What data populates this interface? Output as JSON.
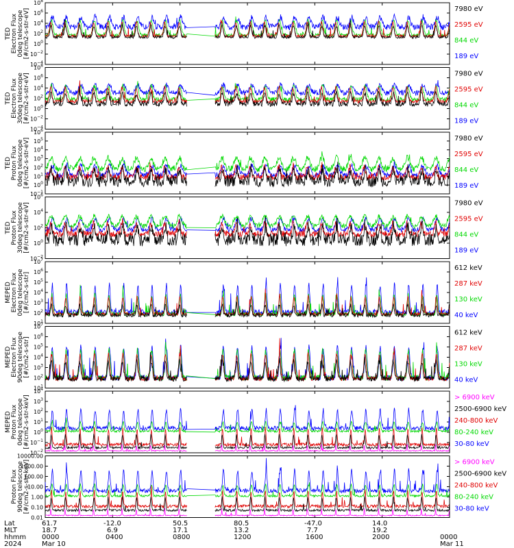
{
  "colors": {
    "blue": "#0000ff",
    "green": "#00d800",
    "red": "#e00000",
    "black": "#000000",
    "magenta": "#ff00ff"
  },
  "panels": [
    {
      "ylabel": [
        "TED",
        "Electron Flux",
        "0deg telescope",
        "[#/cm2-s-str-eV]"
      ],
      "scale": "log",
      "ylim": [
        -4,
        8
      ],
      "ytick_exps": [
        8,
        6,
        4,
        2,
        0,
        -2,
        -4
      ],
      "tick_style": "pow",
      "legend": [
        {
          "label": "7980 eV",
          "color": "black"
        },
        {
          "label": "2595 eV",
          "color": "red"
        },
        {
          "label": "844 eV",
          "color": "green"
        },
        {
          "label": "189 eV",
          "color": "blue"
        }
      ]
    },
    {
      "ylabel": [
        "TED",
        "Electron Flux",
        "30deg telescope",
        "[#/cm2-s-str-eV]"
      ],
      "scale": "log",
      "ylim": [
        -4,
        8
      ],
      "ytick_exps": [
        8,
        6,
        4,
        2,
        0,
        -2,
        -4
      ],
      "tick_style": "pow",
      "legend": [
        {
          "label": "7980 eV",
          "color": "black"
        },
        {
          "label": "2595 eV",
          "color": "red"
        },
        {
          "label": "844 eV",
          "color": "green"
        },
        {
          "label": "189 eV",
          "color": "blue"
        }
      ]
    },
    {
      "ylabel": [
        "TED",
        "Proton Flux",
        "0deg telescope",
        "[#/cm2-s-str-eV]"
      ],
      "scale": "log",
      "ylim": [
        -1,
        6
      ],
      "ytick_exps": [
        6,
        5,
        4,
        3,
        2,
        1,
        0,
        -1
      ],
      "tick_style": "pow",
      "legend": [
        {
          "label": "7980 eV",
          "color": "black"
        },
        {
          "label": "2595 eV",
          "color": "red"
        },
        {
          "label": "844 eV",
          "color": "green"
        },
        {
          "label": "189 eV",
          "color": "blue"
        }
      ]
    },
    {
      "ylabel": [
        "TED",
        "Proton Flux",
        "30deg telescope",
        "[#/cm2-s-str-eV]"
      ],
      "scale": "log",
      "ylim": [
        -2,
        6
      ],
      "ytick_exps": [
        6,
        4,
        2,
        0,
        -2
      ],
      "tick_style": "pow",
      "legend": [
        {
          "label": "7980 eV",
          "color": "black"
        },
        {
          "label": "2595 eV",
          "color": "red"
        },
        {
          "label": "844 eV",
          "color": "green"
        },
        {
          "label": "189 eV",
          "color": "blue"
        }
      ]
    },
    {
      "ylabel": [
        "MEPED",
        "Electron Flux",
        "0deg telescope",
        "[#/cm2-s-str]"
      ],
      "scale": "log",
      "ylim": [
        1,
        7
      ],
      "ytick_exps": [
        7,
        6,
        5,
        4,
        3,
        2,
        1
      ],
      "tick_style": "pow",
      "legend": [
        {
          "label": "612 keV",
          "color": "black"
        },
        {
          "label": "287 keV",
          "color": "red"
        },
        {
          "label": "130 keV",
          "color": "green"
        },
        {
          "label": "40 keV",
          "color": "blue"
        }
      ]
    },
    {
      "ylabel": [
        "MEPED",
        "Electron Flux",
        "90deg telescope",
        "[#/cm2-s-str]"
      ],
      "scale": "log",
      "ylim": [
        1,
        7
      ],
      "ytick_exps": [
        7,
        6,
        5,
        4,
        3,
        2,
        1
      ],
      "tick_style": "pow",
      "legend": [
        {
          "label": "612 keV",
          "color": "black"
        },
        {
          "label": "287 keV",
          "color": "red"
        },
        {
          "label": "130 keV",
          "color": "green"
        },
        {
          "label": "40 keV",
          "color": "blue"
        }
      ]
    },
    {
      "ylabel": [
        "MEPED",
        "Proton Flux",
        "0deg telescope",
        "[#/cm2-s-str-keV]"
      ],
      "scale": "log",
      "ylim": [
        -2,
        4
      ],
      "ytick_exps": [
        4,
        3,
        2,
        1,
        0,
        -1,
        -2
      ],
      "tick_style": "pow",
      "legend": [
        {
          "label": "> 6900 keV",
          "color": "magenta"
        },
        {
          "label": "2500-6900 keV",
          "color": "black"
        },
        {
          "label": "240-800 keV",
          "color": "red"
        },
        {
          "label": "80-240 keV",
          "color": "green"
        },
        {
          "label": "30-80 keV",
          "color": "blue"
        }
      ]
    },
    {
      "ylabel": [
        "",
        "Proton Flux",
        "90deg telescope",
        "[#/cm2-s-str-keV]"
      ],
      "scale": "log",
      "ylim": [
        -2,
        4
      ],
      "ytick_labels": [
        "10000.00",
        "1000.00",
        "100.00",
        "10.00",
        "1.00",
        "0.10",
        "0.01"
      ],
      "tick_style": "dec",
      "legend": [
        {
          "label": "> 6900 keV",
          "color": "magenta"
        },
        {
          "label": "2500-6900 keV",
          "color": "black"
        },
        {
          "label": "240-800 keV",
          "color": "red"
        },
        {
          "label": "80-240 keV",
          "color": "green"
        },
        {
          "label": "30-80 keV",
          "color": "blue"
        }
      ]
    }
  ],
  "footer": {
    "row_labels": [
      "Lat",
      "MLT",
      "hhmm",
      "2024"
    ],
    "columns": [
      {
        "lat": "61.7",
        "mlt": "18.7",
        "hhmm": "0000",
        "date": "Mar 10"
      },
      {
        "lat": "-12.0",
        "mlt": "6.9",
        "hhmm": "0400",
        "date": ""
      },
      {
        "lat": "50.5",
        "mlt": "17.1",
        "hhmm": "0800",
        "date": ""
      },
      {
        "lat": "80.5",
        "mlt": "13.2",
        "hhmm": "1200",
        "date": ""
      },
      {
        "lat": "-47.0",
        "mlt": "7.7",
        "hhmm": "1600",
        "date": ""
      },
      {
        "lat": "14.0",
        "mlt": "19.2",
        "hhmm": "2000",
        "date": ""
      },
      {
        "lat": "",
        "mlt": "",
        "hhmm": "0000",
        "date": "Mar 11"
      }
    ]
  },
  "chart_data": {
    "type": "line",
    "x_axis": "hhmm",
    "x_range": [
      "0000 Mar 10",
      "0000 Mar 11"
    ],
    "data_gap": [
      "0840",
      "1010"
    ],
    "panel_count": 8
  }
}
